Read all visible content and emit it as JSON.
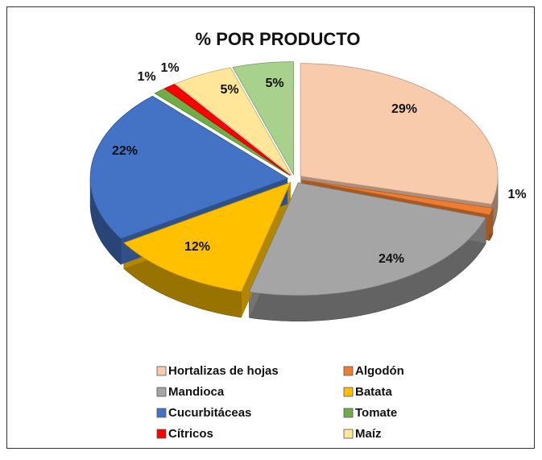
{
  "chart_data": {
    "type": "pie",
    "title": "% POR PRODUCTO",
    "categories": [
      "Hortalizas de hojas",
      "Algodón",
      "Mandioca",
      "Batata",
      "Cucurbitáceas",
      "Tomate",
      "Cítricos",
      "Maíz",
      null
    ],
    "values": [
      29,
      1,
      24,
      12,
      22,
      1,
      1,
      5,
      5
    ],
    "value_labels": [
      "29%",
      "1%",
      "24%",
      "12%",
      "22%",
      "1%",
      "1%",
      "5%",
      "5%"
    ],
    "colors": [
      "#f8cbad",
      "#ed7d31",
      "#a5a5a5",
      "#ffc000",
      "#4472c4",
      "#70ad47",
      "#ff0000",
      "#ffe699",
      "#a9d18e"
    ],
    "legend": "bottom"
  }
}
